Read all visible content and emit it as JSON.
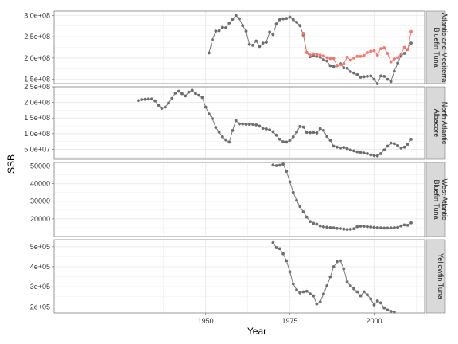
{
  "chart_data": {
    "type": "line",
    "xlabel": "Year",
    "ylabel": "SSB",
    "xlim": [
      1905,
      2015
    ],
    "x_ticks": [
      1950,
      1975,
      2000
    ],
    "grid": true,
    "colors": {
      "primary": "#6e6e6e",
      "secondary": "#f8766d",
      "panel_bg": "#ffffff",
      "grid": "#ebebeb",
      "strip_bg": "#d9d9d9",
      "border": "#7f7f7f"
    },
    "panels": [
      {
        "strip": [
          "Atlantic and Mediterra",
          "Bluefin Tuna"
        ],
        "ylim": [
          140000000,
          310000000
        ],
        "y_ticks": [
          150000000,
          200000000,
          250000000,
          300000000
        ],
        "y_tick_labels": [
          "1.5e+08",
          "2.0e+08",
          "2.5e+08",
          "3.0e+08"
        ],
        "series": [
          {
            "role": "primary",
            "color": "#6e6e6e",
            "x": [
              1951,
              1952,
              1953,
              1954,
              1955,
              1956,
              1957,
              1958,
              1959,
              1960,
              1961,
              1962,
              1963,
              1964,
              1965,
              1966,
              1967,
              1968,
              1969,
              1970,
              1971,
              1972,
              1973,
              1974,
              1975,
              1976,
              1977,
              1978,
              1979,
              1980,
              1981,
              1982,
              1983,
              1984,
              1985,
              1986,
              1987,
              1988,
              1989,
              1990,
              1991,
              1992,
              1993,
              1994,
              1995,
              1996,
              1997,
              1998,
              1999,
              2000,
              2001,
              2002,
              2003,
              2004,
              2005,
              2006,
              2007,
              2008,
              2009,
              2010,
              2011
            ],
            "y": [
              212000000,
              243000000,
              263000000,
              264000000,
              272000000,
              271000000,
              282000000,
              291000000,
              300000000,
              292000000,
              276000000,
              263000000,
              232000000,
              230000000,
              240000000,
              227000000,
              235000000,
              237000000,
              261000000,
              255000000,
              280000000,
              290000000,
              292000000,
              293000000,
              296000000,
              290000000,
              284000000,
              276000000,
              254000000,
              213000000,
              203000000,
              206000000,
              204000000,
              202000000,
              196000000,
              193000000,
              182000000,
              180000000,
              182000000,
              187000000,
              177000000,
              176000000,
              168000000,
              165000000,
              161000000,
              155000000,
              156000000,
              157000000,
              158000000,
              150000000,
              140000000,
              158000000,
              157000000,
              150000000,
              145000000,
              169000000,
              188000000,
              206000000,
              211000000,
              220000000,
              235000000
            ]
          },
          {
            "role": "secondary",
            "color": "#f8766d",
            "x": [
              1979,
              1980,
              1981,
              1982,
              1983,
              1984,
              1985,
              1986,
              1987,
              1988,
              1989,
              1990,
              1991,
              1992,
              1993,
              1994,
              1995,
              1996,
              1997,
              1998,
              1999,
              2000,
              2001,
              2002,
              2003,
              2004,
              2005,
              2006,
              2007,
              2008,
              2009,
              2010,
              2011
            ],
            "y": [
              258000000,
              213000000,
              207000000,
              210000000,
              209000000,
              207000000,
              205000000,
              201000000,
              199000000,
              199000000,
              183000000,
              184000000,
              187000000,
              202000000,
              195000000,
              200000000,
              204000000,
              204000000,
              206000000,
              213000000,
              216000000,
              217000000,
              207000000,
              222000000,
              224000000,
              211000000,
              191000000,
              198000000,
              201000000,
              210000000,
              225000000,
              220000000,
              262000000
            ]
          }
        ]
      },
      {
        "strip": [
          "North Atlantic",
          "Albacore"
        ],
        "ylim": [
          18000000,
          250000000
        ],
        "y_ticks": [
          50000000,
          100000000,
          150000000,
          200000000,
          250000000
        ],
        "y_tick_labels": [
          "5.0e+07",
          "1.0e+08",
          "1.5e+08",
          "2.0e+08",
          "2.5e+08"
        ],
        "series": [
          {
            "role": "primary",
            "color": "#6e6e6e",
            "x": [
              1930,
              1931,
              1932,
              1933,
              1934,
              1935,
              1936,
              1937,
              1938,
              1939,
              1940,
              1941,
              1942,
              1943,
              1944,
              1945,
              1946,
              1947,
              1948,
              1949,
              1950,
              1951,
              1952,
              1953,
              1954,
              1955,
              1956,
              1957,
              1958,
              1959,
              1960,
              1961,
              1962,
              1963,
              1964,
              1965,
              1966,
              1967,
              1968,
              1969,
              1970,
              1971,
              1972,
              1973,
              1974,
              1975,
              1976,
              1977,
              1978,
              1979,
              1980,
              1981,
              1982,
              1983,
              1984,
              1985,
              1986,
              1987,
              1988,
              1989,
              1990,
              1991,
              1992,
              1993,
              1994,
              1995,
              1996,
              1997,
              1998,
              1999,
              2000,
              2001,
              2002,
              2003,
              2004,
              2005,
              2006,
              2007,
              2008,
              2009,
              2010,
              2011
            ],
            "y": [
              206000000,
              209000000,
              210000000,
              211000000,
              211000000,
              205000000,
              191000000,
              181000000,
              185000000,
              198000000,
              213000000,
              230000000,
              236000000,
              228000000,
              221000000,
              233000000,
              239000000,
              229000000,
              223000000,
              216000000,
              185000000,
              163000000,
              148000000,
              120000000,
              105000000,
              90000000,
              80000000,
              73000000,
              110000000,
              142000000,
              131000000,
              131000000,
              130000000,
              130000000,
              130000000,
              128000000,
              124000000,
              117000000,
              115000000,
              112000000,
              106000000,
              95000000,
              82000000,
              74000000,
              73000000,
              79000000,
              90000000,
              105000000,
              123000000,
              121000000,
              104000000,
              103000000,
              104000000,
              102000000,
              116000000,
              110000000,
              91000000,
              79000000,
              60000000,
              57000000,
              54000000,
              56000000,
              52000000,
              48000000,
              45000000,
              42000000,
              40000000,
              38000000,
              36000000,
              32000000,
              30000000,
              29000000,
              36000000,
              48000000,
              60000000,
              70000000,
              68000000,
              62000000,
              54000000,
              57000000,
              66000000,
              82000000
            ]
          }
        ]
      },
      {
        "strip": [
          "West Atlantic",
          "Bluefin Tuna"
        ],
        "ylim": [
          10000,
          52000
        ],
        "y_ticks": [
          20000,
          30000,
          40000,
          50000
        ],
        "y_tick_labels": [
          "20000",
          "30000",
          "40000",
          "50000"
        ],
        "series": [
          {
            "role": "primary",
            "color": "#6e6e6e",
            "x": [
              1970,
              1971,
              1972,
              1973,
              1974,
              1975,
              1976,
              1977,
              1978,
              1979,
              1980,
              1981,
              1982,
              1983,
              1984,
              1985,
              1986,
              1987,
              1988,
              1989,
              1990,
              1991,
              1992,
              1993,
              1994,
              1995,
              1996,
              1997,
              1998,
              1999,
              2000,
              2001,
              2002,
              2003,
              2004,
              2005,
              2006,
              2007,
              2008,
              2009,
              2010,
              2011
            ],
            "y": [
              50500,
              50200,
              50400,
              51000,
              47000,
              41000,
              35000,
              30500,
              27000,
              24000,
              21000,
              18500,
              17500,
              17000,
              16000,
              15500,
              15300,
              15000,
              14900,
              14600,
              14500,
              14200,
              14000,
              14100,
              14400,
              15600,
              15900,
              15800,
              15600,
              15400,
              15200,
              15000,
              14900,
              14800,
              14800,
              14900,
              15000,
              15200,
              16000,
              16600,
              16400,
              17800
            ]
          }
        ]
      },
      {
        "strip": [
          "Yellowfin Tuna"
        ],
        "ylim": [
          170000,
          535000
        ],
        "y_ticks": [
          200000,
          300000,
          400000,
          500000
        ],
        "y_tick_labels": [
          "2e+05",
          "3e+05",
          "4e+05",
          "5e+05"
        ],
        "series": [
          {
            "role": "primary",
            "color": "#6e6e6e",
            "x": [
              1970,
              1971,
              1972,
              1973,
              1974,
              1975,
              1976,
              1977,
              1978,
              1979,
              1980,
              1981,
              1982,
              1983,
              1984,
              1985,
              1986,
              1987,
              1988,
              1989,
              1990,
              1991,
              1992,
              1993,
              1994,
              1995,
              1996,
              1997,
              1998,
              1999,
              2000,
              2001,
              2002,
              2003,
              2004,
              2005,
              2006
            ],
            "y": [
              520000,
              495000,
              490000,
              465000,
              430000,
              375000,
              315000,
              285000,
              270000,
              275000,
              278000,
              265000,
              255000,
              215000,
              225000,
              265000,
              305000,
              350000,
              400000,
              425000,
              430000,
              390000,
              325000,
              305000,
              290000,
              275000,
              255000,
              275000,
              260000,
              240000,
              210000,
              230000,
              220000,
              195000,
              185000,
              178000,
              175000
            ]
          }
        ]
      }
    ]
  }
}
